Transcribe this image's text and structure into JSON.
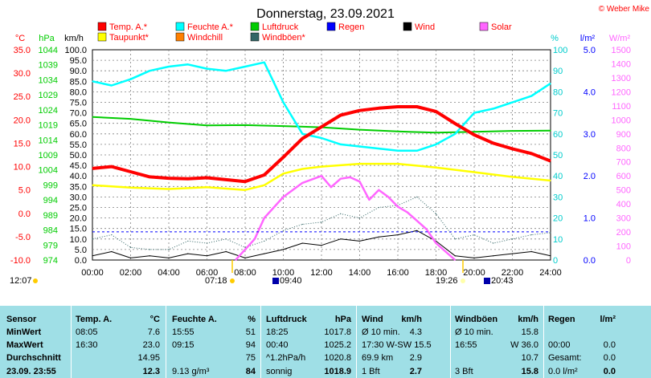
{
  "title": "Donnerstag, 23.09.2021",
  "copyright": "© Weber Mike",
  "legend": [
    {
      "label": "Temp. A.*",
      "color": "#ff0000"
    },
    {
      "label": "Feuchte A.*",
      "color": "#00ffff"
    },
    {
      "label": "Luftdruck",
      "color": "#00cc00"
    },
    {
      "label": "Regen",
      "color": "#0000ff"
    },
    {
      "label": "Wind",
      "color": "#000000"
    },
    {
      "label": "Solar",
      "color": "#ff66ff"
    },
    {
      "label": "Taupunkt*",
      "color": "#ffff00"
    },
    {
      "label": "Windchill",
      "color": "#ff8000"
    },
    {
      "label": "Windböen*",
      "color": "#336666"
    }
  ],
  "axes": {
    "temp_unit": "°C",
    "pressure_unit": "hPa",
    "wind_unit": "km/h",
    "humidity_unit": "%",
    "rain_unit": "l/m²",
    "solar_unit": "W/m²",
    "temp_ticks": [
      "35.0",
      "30.0",
      "25.0",
      "20.0",
      "15.0",
      "10.0",
      "5.0",
      "0.0",
      "-5.0",
      "-10.0"
    ],
    "pressure_ticks": [
      "1044",
      "1039",
      "1034",
      "1029",
      "1024",
      "1019",
      "1014",
      "1009",
      "1004",
      "999",
      "994",
      "989",
      "984",
      "979",
      "974"
    ],
    "wind_ticks": [
      "100.0",
      "95.0",
      "90.0",
      "85.0",
      "80.0",
      "75.0",
      "70.0",
      "65.0",
      "60.0",
      "55.0",
      "50.0",
      "45.0",
      "40.0",
      "35.0",
      "30.0",
      "25.0",
      "20.0",
      "15.0",
      "10.0",
      "5.0",
      "0.0"
    ],
    "humidity_ticks": [
      "100",
      "90",
      "80",
      "70",
      "60",
      "50",
      "40",
      "30",
      "20",
      "10",
      "0"
    ],
    "rain_ticks": [
      "5.0",
      "4.0",
      "3.0",
      "2.0",
      "1.0",
      "0.0"
    ],
    "solar_ticks": [
      "1500",
      "1400",
      "1300",
      "1200",
      "1100",
      "1000",
      "900",
      "800",
      "700",
      "600",
      "500",
      "400",
      "300",
      "200",
      "100",
      "0"
    ],
    "time_ticks": [
      "00:00",
      "02:00",
      "04:00",
      "06:00",
      "08:00",
      "10:00",
      "12:00",
      "14:00",
      "16:00",
      "18:00",
      "20:00",
      "22:00",
      "24:00"
    ]
  },
  "sun_moon": {
    "moonset": "12:07",
    "sunrise": "07:18",
    "moonrise_left": "09:40",
    "sunset": "19:26",
    "moonrise_right": "20:43"
  },
  "colors": {
    "table_bg": "#9fdfe6",
    "grid": "#808080"
  },
  "chart_data": {
    "type": "line",
    "x_label": "time",
    "xlim": [
      0,
      24
    ],
    "series": [
      {
        "name": "Temp. A.*",
        "axis": "temp",
        "ylim": [
          -10,
          35
        ],
        "x": [
          0,
          1,
          2,
          3,
          4,
          5,
          6,
          7,
          8,
          9,
          10,
          11,
          12,
          13,
          14,
          15,
          16,
          17,
          18,
          19,
          20,
          21,
          22,
          23,
          24
        ],
        "y": [
          9.6,
          10.0,
          8.9,
          7.8,
          7.5,
          7.4,
          7.6,
          7.2,
          6.8,
          8.2,
          12.0,
          16.0,
          18.5,
          21.0,
          22.0,
          22.5,
          22.8,
          22.8,
          21.8,
          19.2,
          16.8,
          15.0,
          13.8,
          12.8,
          11.2
        ]
      },
      {
        "name": "Taupunkt*",
        "axis": "temp",
        "ylim": [
          -10,
          35
        ],
        "x": [
          0,
          2,
          4,
          6,
          8,
          9,
          10,
          11,
          12,
          14,
          16,
          18,
          20,
          22,
          24
        ],
        "y": [
          6.0,
          5.5,
          5.2,
          5.6,
          5.0,
          6.0,
          8.5,
          9.5,
          10.0,
          10.6,
          10.6,
          9.8,
          8.8,
          7.8,
          7.0
        ]
      },
      {
        "name": "Feuchte A.*",
        "axis": "humidity",
        "ylim": [
          0,
          100
        ],
        "x": [
          0,
          1,
          2,
          3,
          4,
          5,
          6,
          7,
          8,
          9,
          10,
          11,
          12,
          13,
          14,
          15,
          16,
          17,
          18,
          19,
          20,
          21,
          22,
          23,
          24
        ],
        "y": [
          85,
          83,
          86,
          90,
          92,
          93,
          91,
          90,
          92,
          94,
          75,
          60,
          58,
          55,
          54,
          53,
          52,
          52,
          55,
          60,
          70,
          72,
          75,
          78,
          84
        ]
      },
      {
        "name": "Luftdruck",
        "axis": "pressure",
        "ylim": [
          974,
          1044
        ],
        "x": [
          0,
          2,
          4,
          6,
          8,
          10,
          12,
          14,
          16,
          18,
          20,
          22,
          24
        ],
        "y": [
          1021.6,
          1021.0,
          1019.8,
          1018.8,
          1018.9,
          1018.6,
          1018.2,
          1017.4,
          1016.8,
          1016.4,
          1016.7,
          1017.0,
          1017.1
        ]
      },
      {
        "name": "Solar",
        "axis": "solar",
        "ylim": [
          0,
          1500
        ],
        "x": [
          7.5,
          8.5,
          9,
          10,
          11,
          12,
          12.5,
          13,
          13.5,
          14,
          14.5,
          15,
          15.5,
          16,
          16.5,
          17,
          17.5,
          18,
          18.5,
          19
        ],
        "y": [
          0,
          150,
          300,
          450,
          550,
          600,
          520,
          580,
          590,
          560,
          430,
          500,
          450,
          380,
          340,
          280,
          220,
          120,
          60,
          0
        ]
      },
      {
        "name": "Wind",
        "axis": "wind",
        "ylim": [
          0,
          100
        ],
        "x": [
          0,
          1,
          2,
          3,
          4,
          5,
          6,
          7,
          8,
          9,
          10,
          11,
          12,
          13,
          14,
          15,
          16,
          17,
          18,
          19,
          20,
          21,
          22,
          23,
          24
        ],
        "y": [
          2,
          4,
          1,
          2,
          1,
          3,
          2,
          4,
          1,
          3,
          5,
          8,
          7,
          10,
          9,
          11,
          12,
          14,
          9,
          2,
          1,
          2,
          3,
          4,
          2
        ]
      },
      {
        "name": "Windböen*",
        "axis": "wind",
        "ylim": [
          0,
          100
        ],
        "x": [
          0,
          1,
          2,
          3,
          4,
          5,
          6,
          7,
          8,
          9,
          10,
          11,
          12,
          13,
          14,
          15,
          16,
          17,
          18,
          19,
          20,
          21,
          22,
          23,
          24
        ],
        "y": [
          10,
          12,
          6,
          5,
          5,
          9,
          8,
          10,
          6,
          9,
          14,
          17,
          18,
          22,
          20,
          25,
          26,
          30,
          22,
          10,
          12,
          8,
          10,
          12,
          13
        ]
      }
    ]
  },
  "table": {
    "headers": [
      "Sensor",
      "Temp. A.",
      "°C",
      "Feuchte A.",
      "%",
      "Luftdruck",
      "hPa",
      "Wind",
      "km/h",
      "Windböen",
      "km/h",
      "Regen",
      "l/m²"
    ],
    "rows": [
      [
        "MinWert",
        "08:05",
        "7.6",
        "15:55",
        "51",
        "18:25",
        "1017.8",
        "Ø 10 min.",
        "4.3",
        "Ø 10 min.",
        "15.8",
        "",
        ""
      ],
      [
        "MaxWert",
        "16:30",
        "23.0",
        "09:15",
        "94",
        "00:40",
        "1025.2",
        "17:30   W-SW 15.5",
        "",
        "16:55",
        "W 36.0",
        "00:00",
        "0.0"
      ],
      [
        "Durchschnitt",
        "",
        "14.95",
        "",
        "75",
        "^1.2hPa/h",
        "1020.8",
        "69.9 km",
        "2.9",
        "",
        "10.7",
        "Gesamt:",
        "0.0"
      ],
      [
        "23.09.  23:55",
        "",
        "12.3",
        "9.13 g/m³",
        "84",
        "sonnig",
        "1018.9",
        "1 Bft",
        "2.7",
        "3 Bft",
        "15.8",
        "0.0 l/m²",
        "0.0"
      ]
    ]
  }
}
